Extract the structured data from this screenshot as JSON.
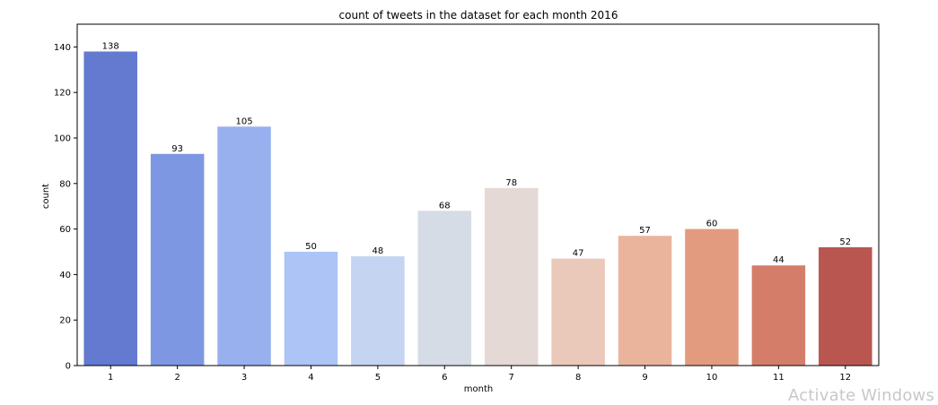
{
  "chart_data": {
    "type": "bar",
    "title": "count of tweets in the dataset for each month 2016",
    "xlabel": "month",
    "ylabel": "count",
    "categories": [
      "1",
      "2",
      "3",
      "4",
      "5",
      "6",
      "7",
      "8",
      "9",
      "10",
      "11",
      "12"
    ],
    "values": [
      138,
      93,
      105,
      50,
      48,
      68,
      78,
      47,
      57,
      60,
      44,
      52
    ],
    "data_labels": [
      "138",
      "93",
      "105",
      "50",
      "48",
      "68",
      "78",
      "47",
      "57",
      "60",
      "44",
      "52"
    ],
    "colors": [
      "#6479d0",
      "#7e97e2",
      "#98b0ee",
      "#adc4f6",
      "#c4d4f1",
      "#d5dce5",
      "#e4d9d5",
      "#eac9ba",
      "#eab49c",
      "#e29b7f",
      "#d47e69",
      "#ba5650"
    ],
    "ylim": [
      0,
      150
    ],
    "yticks": [
      0,
      20,
      40,
      60,
      80,
      100,
      120,
      140
    ],
    "ytick_labels": [
      "0",
      "20",
      "40",
      "60",
      "80",
      "100",
      "120",
      "140"
    ],
    "grid": false,
    "legend": "none"
  },
  "watermark": "Activate Windows"
}
